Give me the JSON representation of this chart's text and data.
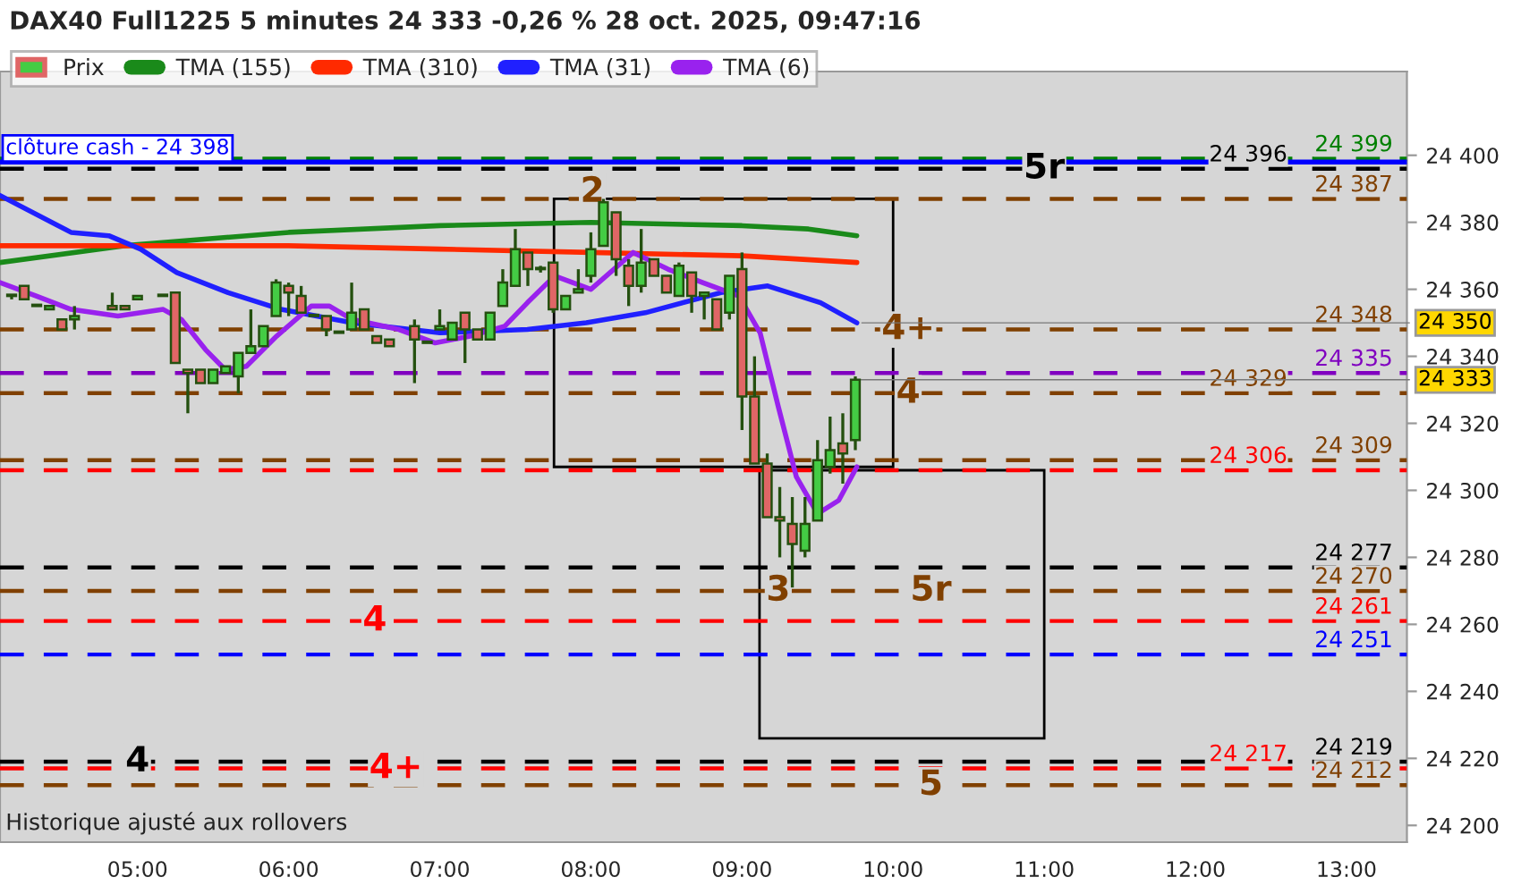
{
  "chart_data": {
    "type": "candlestick",
    "title": "DAX40 Full1225 5 minutes 24 333 -0,26 % 28 oct. 2025, 09:47:16",
    "legend": "top left",
    "xlim": [
      4.09,
      13.4
    ],
    "xticks": [
      {
        "value": 5,
        "label": "05:00"
      },
      {
        "value": 6,
        "label": "06:00"
      },
      {
        "value": 7,
        "label": "07:00"
      },
      {
        "value": 8,
        "label": "08:00"
      },
      {
        "value": 9,
        "label": "09:00"
      },
      {
        "value": 10,
        "label": "10:00"
      },
      {
        "value": 11,
        "label": "11:00"
      },
      {
        "value": 12,
        "label": "12:00"
      },
      {
        "value": 13,
        "label": "13:00"
      }
    ],
    "ylim": [
      24195,
      24425
    ],
    "yticks": [
      {
        "value": 24200,
        "label": "24 200"
      },
      {
        "value": 24220,
        "label": "24 220"
      },
      {
        "value": 24240,
        "label": "24 240"
      },
      {
        "value": 24260,
        "label": "24 260"
      },
      {
        "value": 24280,
        "label": "24 280"
      },
      {
        "value": 24300,
        "label": "24 300"
      },
      {
        "value": 24320,
        "label": "24 320"
      },
      {
        "value": 24340,
        "label": "24 340"
      },
      {
        "value": 24360,
        "label": "24 360"
      },
      {
        "value": 24380,
        "label": "24 380"
      },
      {
        "value": 24400,
        "label": "24 400"
      }
    ],
    "series": [
      {
        "name": "Prix",
        "type": "candlestick",
        "colors": [
          "#44cc44",
          "#e06666",
          "#44cc44",
          "#44cc44",
          "#e06666",
          "#44cc44",
          "#e06666",
          "#e06666",
          "#44cc44",
          "#44cc44",
          "#e06666",
          "#e06666",
          "#e06666",
          "#44cc44",
          "#44cc44",
          "#44cc44",
          "#44cc44",
          "#44cc44",
          "#44cc44",
          "#e06666",
          "#e06666",
          "#44cc44",
          "#e06666",
          "#44cc44",
          "#44cc44",
          "#e06666",
          "#e06666",
          "#e06666",
          "#e06666",
          "#44cc44",
          "#44cc44",
          "#44cc44",
          "#e06666",
          "#e06666",
          "#44cc44",
          "#44cc44",
          "#44cc44",
          "#e06666",
          "#44cc44",
          "#e06666",
          "#44cc44",
          "#44cc44",
          "#44cc44",
          "#44cc44",
          "#e06666",
          "#e06666",
          "#44cc44",
          "#e06666",
          "#e06666",
          "#44cc44",
          "#e06666",
          "#44cc44",
          "#e06666",
          "#44cc44",
          "#e06666",
          "#e06666",
          "#e06666",
          "#e06666",
          "#e06666",
          "#44cc44",
          "#44cc44",
          "#44cc44",
          "#e06666",
          "#44cc44"
        ],
        "x": [
          4.167,
          4.25,
          4.333,
          4.417,
          4.5,
          4.583,
          4.833,
          4.917,
          5.0,
          5.167,
          5.25,
          5.333,
          5.417,
          5.5,
          5.583,
          5.667,
          5.75,
          5.833,
          5.917,
          6.0,
          6.083,
          6.167,
          6.25,
          6.333,
          6.417,
          6.5,
          6.583,
          6.667,
          6.833,
          6.917,
          7.0,
          7.083,
          7.167,
          7.25,
          7.333,
          7.417,
          7.5,
          7.583,
          7.667,
          7.75,
          7.833,
          7.917,
          8.0,
          8.083,
          8.167,
          8.25,
          8.333,
          8.417,
          8.5,
          8.583,
          8.667,
          8.75,
          8.833,
          8.917,
          9.0,
          9.083,
          9.167,
          9.25,
          9.333,
          9.417,
          9.5,
          9.583,
          9.667,
          9.75
        ],
        "ohlc": [
          [
            24358,
            24358,
            24357,
            24358
          ],
          [
            24361,
            24361,
            24357,
            24357
          ],
          [
            24355,
            24355,
            24355,
            24355
          ],
          [
            24354,
            24355,
            24354,
            24355
          ],
          [
            24351,
            24351,
            24348,
            24348
          ],
          [
            24351,
            24355,
            24348,
            24352
          ],
          [
            24355,
            24359,
            24354,
            24354
          ],
          [
            24355,
            24355,
            24354,
            24354
          ],
          [
            24357,
            24358,
            24357,
            24358
          ],
          [
            24358,
            24358,
            24358,
            24358
          ],
          [
            24359,
            24359,
            24338,
            24338
          ],
          [
            24336,
            24336,
            24323,
            24335
          ],
          [
            24336,
            24336,
            24332,
            24332
          ],
          [
            24332,
            24336,
            24332,
            24336
          ],
          [
            24335,
            24337,
            24335,
            24337
          ],
          [
            24334,
            24341,
            24329,
            24341
          ],
          [
            24341,
            24354,
            24341,
            24343
          ],
          [
            24343,
            24349,
            24343,
            24349
          ],
          [
            24352,
            24363,
            24352,
            24362
          ],
          [
            24361,
            24362,
            24352,
            24359
          ],
          [
            24358,
            24361,
            24353,
            24353
          ],
          [
            24352,
            24352,
            24352,
            24352
          ],
          [
            24352,
            24352,
            24346,
            24348
          ],
          [
            24347,
            24347,
            24347,
            24347
          ],
          [
            24348,
            24362,
            24348,
            24353
          ],
          [
            24354,
            24354,
            24348,
            24348
          ],
          [
            24346,
            24346,
            24344,
            24344
          ],
          [
            24345,
            24345,
            24343,
            24343
          ],
          [
            24349,
            24351,
            24332,
            24345
          ],
          [
            24344,
            24344,
            24344,
            24344
          ],
          [
            24348,
            24354,
            24348,
            24349
          ],
          [
            24345,
            24350,
            24345,
            24350
          ],
          [
            24353,
            24353,
            24338,
            24348
          ],
          [
            24348,
            24348,
            24345,
            24345
          ],
          [
            24345,
            24353,
            24345,
            24353
          ],
          [
            24355,
            24366,
            24355,
            24362
          ],
          [
            24361,
            24378,
            24361,
            24372
          ],
          [
            24371,
            24371,
            24361,
            24366
          ],
          [
            24366,
            24367,
            24365,
            24366
          ],
          [
            24368,
            24368,
            24353,
            24354
          ],
          [
            24354,
            24358,
            24354,
            24358
          ],
          [
            24359,
            24366,
            24359,
            24360
          ],
          [
            24364,
            24377,
            24362,
            24372
          ],
          [
            24373,
            24387,
            24373,
            24386
          ],
          [
            24383,
            24383,
            24364,
            24369
          ],
          [
            24367,
            24369,
            24355,
            24361
          ],
          [
            24361,
            24378,
            24359,
            24368
          ],
          [
            24369,
            24369,
            24364,
            24364
          ],
          [
            24364,
            24364,
            24359,
            24359
          ],
          [
            24358,
            24368,
            24358,
            24367
          ],
          [
            24365,
            24365,
            24353,
            24358
          ],
          [
            24358,
            24359,
            24351,
            24359
          ],
          [
            24357,
            24357,
            24348,
            24348
          ],
          [
            24353,
            24364,
            24351,
            24364
          ],
          [
            24366,
            24371,
            24318,
            24328
          ],
          [
            24328,
            24340,
            24308,
            24308
          ],
          [
            24308,
            24311,
            24292,
            24292
          ],
          [
            24292,
            24301,
            24280,
            24291
          ],
          [
            24290,
            24298,
            24271,
            24284
          ],
          [
            24282,
            24298,
            24280,
            24290
          ],
          [
            24291,
            24315,
            24291,
            24309
          ],
          [
            24307,
            24322,
            24305,
            24312
          ],
          [
            24314,
            24323,
            24302,
            24311
          ],
          [
            24315,
            24334,
            24312,
            24333
          ]
        ]
      },
      {
        "name": "TMA (155)",
        "type": "line",
        "color": "#1a8a1a",
        "x": [
          4.09,
          4.91,
          6.0,
          7.0,
          8.0,
          9.0,
          9.44,
          9.76
        ],
        "values": [
          24368,
          24373,
          24377,
          24379,
          24380,
          24379,
          24378,
          24376
        ]
      },
      {
        "name": "TMA (310)",
        "type": "line",
        "color": "#ff2a00",
        "x": [
          4.09,
          4.91,
          6.0,
          7.0,
          8.0,
          9.0,
          9.76
        ],
        "values": [
          24373,
          24373,
          24373,
          24372,
          24371,
          24370,
          24368
        ]
      },
      {
        "name": "TMA (31)",
        "type": "line",
        "color": "#2020ff",
        "x": [
          4.09,
          4.56,
          4.81,
          5.02,
          5.26,
          5.6,
          5.95,
          6.42,
          7.0,
          7.58,
          7.97,
          8.36,
          8.86,
          9.17,
          9.52,
          9.76
        ],
        "values": [
          24388,
          24377,
          24376,
          24372,
          24365,
          24359,
          24354,
          24350,
          24347,
          24348,
          24350,
          24353,
          24359,
          24361,
          24356,
          24350
        ]
      },
      {
        "name": "TMA (6)",
        "type": "line",
        "color": "#9922ee",
        "x": [
          4.09,
          4.33,
          4.56,
          4.87,
          5.17,
          5.29,
          5.45,
          5.58,
          5.72,
          5.92,
          6.15,
          6.27,
          6.42,
          6.73,
          6.97,
          7.2,
          7.43,
          7.58,
          7.76,
          8.0,
          8.28,
          8.51,
          8.74,
          8.98,
          9.12,
          9.24,
          9.36,
          9.5,
          9.64,
          9.76
        ],
        "values": [
          24362,
          24358,
          24354,
          24352,
          24354,
          24351,
          24342,
          24336,
          24337,
          24346,
          24355,
          24355,
          24351,
          24348,
          24344,
          24346,
          24349,
          24356,
          24364,
          24360,
          24371,
          24366,
          24362,
          24358,
          24347,
          24325,
          24304,
          24293,
          24297,
          24307
        ]
      }
    ],
    "ref_lines": [
      {
        "axis": "y",
        "value": 24399,
        "label": "24 399",
        "color": "#008000",
        "line_style": "dashed"
      },
      {
        "axis": "y",
        "value": 24398,
        "label": "clôture cash - 24 398",
        "color": "#0000ff",
        "line_style": "solid"
      },
      {
        "axis": "y",
        "value": 24396,
        "label": "24 396",
        "color": "#000000",
        "line_style": "dashed"
      },
      {
        "axis": "y",
        "value": 24387,
        "label": "24 387",
        "color": "#804000",
        "line_style": "dashed"
      },
      {
        "axis": "y",
        "value": 24348,
        "label": "24 348",
        "color": "#804000",
        "line_style": "dashed"
      },
      {
        "axis": "y",
        "value": 24335,
        "label": "24 335",
        "color": "#8000c0",
        "line_style": "dashed"
      },
      {
        "axis": "y",
        "value": 24329,
        "label": "24 329",
        "color": "#804000",
        "line_style": "dashed"
      },
      {
        "axis": "y",
        "value": 24309,
        "label": "24 309",
        "color": "#804000",
        "line_style": "dashed"
      },
      {
        "axis": "y",
        "value": 24306,
        "label": "24 306",
        "color": "#ff0000",
        "line_style": "dashed"
      },
      {
        "axis": "y",
        "value": 24277,
        "label": "24 277",
        "color": "#000000",
        "line_style": "dashed"
      },
      {
        "axis": "y",
        "value": 24270,
        "label": "24 270",
        "color": "#804000",
        "line_style": "dashed"
      },
      {
        "axis": "y",
        "value": 24261,
        "label": "24 261",
        "color": "#ff0000",
        "line_style": "dashed"
      },
      {
        "axis": "y",
        "value": 24251,
        "label": "24 251",
        "color": "#0000ff",
        "line_style": "dashed"
      },
      {
        "axis": "y",
        "value": 24219,
        "label": "24 219",
        "color": "#000000",
        "line_style": "dashed"
      },
      {
        "axis": "y",
        "value": 24217,
        "label": "24 217",
        "color": "#ff0000",
        "line_style": "dashed"
      },
      {
        "axis": "y",
        "value": 24212,
        "label": "24 212",
        "color": "#804000",
        "line_style": "dashed"
      }
    ],
    "annotations": [
      {
        "text": "2",
        "x": 8.01,
        "y": 24389
      },
      {
        "text": "3",
        "x": 9.24,
        "y": 24270
      },
      {
        "text": "5r",
        "x": 11.0,
        "y": 24396
      },
      {
        "text": "4+",
        "x": 10.1,
        "y": 24348
      },
      {
        "text": "4",
        "x": 10.1,
        "y": 24329
      },
      {
        "text": "5r",
        "x": 10.25,
        "y": 24270
      },
      {
        "text": "4",
        "x": 6.57,
        "y": 24261
      },
      {
        "text": "4",
        "x": 5.0,
        "y": 24219
      },
      {
        "text": "4+",
        "x": 6.71,
        "y": 24217
      },
      {
        "text": "5",
        "x": 10.25,
        "y": 24212
      },
      {
        "text": "24 350",
        "x": 9.76,
        "y": 24350
      },
      {
        "text": "24 333",
        "x": 9.75,
        "y": 24333
      },
      "Historique ajusté aux rollovers"
    ]
  }
}
